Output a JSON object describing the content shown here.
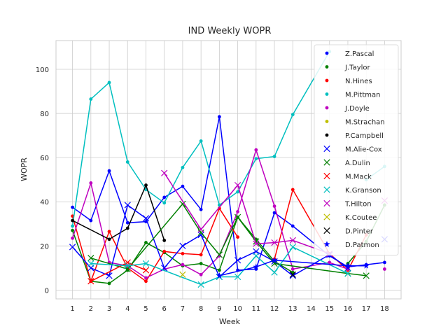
{
  "chart_data": {
    "type": "line",
    "title": "IND Weekly WOPR",
    "xlabel": "Week",
    "ylabel": "WOPR",
    "xlim": [
      0.1,
      18.9
    ],
    "ylim": [
      -4,
      113
    ],
    "x_ticks": [
      1,
      2,
      3,
      4,
      5,
      6,
      7,
      8,
      9,
      10,
      11,
      12,
      13,
      14,
      15,
      16,
      17,
      18
    ],
    "y_ticks": [
      0,
      20,
      40,
      60,
      80,
      100
    ],
    "grid": true,
    "legend_position": "top-right",
    "series": [
      {
        "name": "Z.Pascal",
        "color": "#0000ff",
        "marker": "dot",
        "x": [
          1,
          2,
          3,
          4,
          5,
          6,
          7,
          8,
          9,
          10,
          11,
          12,
          13,
          15,
          16,
          17,
          18
        ],
        "y": [
          37.5,
          31.5,
          54,
          30.5,
          31,
          42,
          47,
          36.5,
          78.5,
          9,
          9.5,
          35,
          29,
          15.5,
          10.5,
          11.5,
          12.5
        ]
      },
      {
        "name": "J.Taylor",
        "color": "#008000",
        "marker": "dot",
        "x": [
          1,
          2,
          3,
          4,
          5,
          6,
          7,
          8,
          9,
          10,
          11,
          12,
          13,
          15,
          16,
          17,
          18
        ],
        "y": [
          27,
          4,
          3,
          9,
          21.5,
          17,
          11,
          12,
          9,
          33,
          23,
          13,
          8,
          null,
          12,
          22,
          38.5
        ]
      },
      {
        "name": "N.Hines",
        "color": "#ff0000",
        "marker": "dot",
        "x": [
          1,
          2,
          3,
          4,
          5,
          6,
          7,
          8,
          9,
          10,
          11,
          12,
          13,
          15,
          16,
          17,
          18
        ],
        "y": [
          33.5,
          4,
          26.5,
          10,
          4,
          17.5,
          16.5,
          16,
          37,
          24,
          null,
          14,
          45.5,
          16.5,
          9,
          25,
          null
        ]
      },
      {
        "name": "M.Pittman",
        "color": "#00bfbf",
        "marker": "dot",
        "x": [
          1,
          2,
          3,
          4,
          5,
          6,
          7,
          8,
          9,
          10,
          11,
          12,
          13,
          15,
          16,
          17,
          18
        ],
        "y": [
          29,
          86.5,
          94,
          58,
          45.5,
          39.5,
          55.5,
          67.5,
          38.5,
          44.5,
          59.5,
          60.5,
          79.5,
          108,
          null,
          50,
          56
        ]
      },
      {
        "name": "J.Doyle",
        "color": "#bf00bf",
        "marker": "dot",
        "x": [
          1,
          2,
          3,
          4,
          5,
          6,
          7,
          8,
          9,
          10,
          11,
          12,
          13,
          15,
          16,
          17,
          18
        ],
        "y": [
          23.5,
          48.5,
          12.5,
          11,
          5.5,
          9.5,
          11.5,
          7,
          15.5,
          35.5,
          63.5,
          38,
          9.5,
          12.5,
          9.5,
          null,
          9.5
        ]
      },
      {
        "name": "M.Strachan",
        "color": "#bfbf00",
        "marker": "dot",
        "x": [],
        "y": []
      },
      {
        "name": "P.Campbell",
        "color": "#000000",
        "marker": "dot",
        "x": [
          1,
          3,
          4,
          5,
          6
        ],
        "y": [
          31.5,
          23,
          28,
          47.5,
          22.5
        ]
      },
      {
        "name": "M.Alie-Cox",
        "color": "#0000ff",
        "marker": "x",
        "x": [
          1,
          2,
          3,
          4,
          5,
          6,
          7,
          8,
          9,
          10,
          11,
          12,
          13,
          15,
          16,
          17,
          18
        ],
        "y": [
          19.5,
          10,
          6.5,
          38.5,
          32.5,
          10,
          20,
          25,
          6,
          13.5,
          17.5,
          13,
          6.5,
          16,
          10,
          null,
          23
        ]
      },
      {
        "name": "A.Dulin",
        "color": "#008000",
        "marker": "x",
        "x": [
          2,
          4,
          7,
          8,
          9,
          10,
          11,
          12,
          16,
          17
        ],
        "y": [
          14.5,
          9.5,
          39,
          26,
          16,
          33,
          22,
          12,
          7.5,
          6.5
        ]
      },
      {
        "name": "M.Mack",
        "color": "#ff0000",
        "marker": "x",
        "x": [
          2,
          4,
          5
        ],
        "y": [
          4,
          12.5,
          9
        ]
      },
      {
        "name": "K.Granson",
        "color": "#00bfbf",
        "marker": "x",
        "x": [
          2,
          4,
          5,
          8,
          9,
          10,
          11,
          12,
          13,
          16
        ],
        "y": [
          12,
          11,
          12,
          2.5,
          6,
          6,
          15.5,
          8,
          19.5,
          7.5
        ]
      },
      {
        "name": "T.Hilton",
        "color": "#bf00bf",
        "marker": "x",
        "x": [
          6,
          8,
          10,
          11,
          12,
          13,
          15,
          16,
          17,
          18
        ],
        "y": [
          53,
          27.5,
          47.5,
          21,
          21.5,
          22.5,
          16.5,
          null,
          null,
          40.5
        ]
      },
      {
        "name": "K.Coutee",
        "color": "#bfbf00",
        "marker": "x",
        "x": [
          7
        ],
        "y": [
          7
        ]
      },
      {
        "name": "D.Pinter",
        "color": "#000000",
        "marker": "x",
        "x": [
          13
        ],
        "y": [
          7
        ]
      },
      {
        "name": "D.Patmon",
        "color": "#0000ff",
        "marker": "star",
        "x": [
          9,
          11,
          12,
          16,
          17
        ],
        "y": [
          6.5,
          10.5,
          13.5,
          11,
          11
        ]
      }
    ]
  }
}
